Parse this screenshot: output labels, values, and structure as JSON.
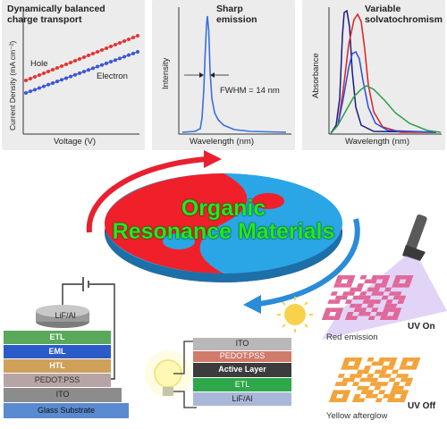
{
  "panels": {
    "charge_transport": {
      "title_line1": "Dynamically balanced",
      "title_line2": "charge transport",
      "xlabel": "Voltage (V)",
      "ylabel": "Current Density (mA cm⁻²)",
      "series_labels": {
        "hole": "Hole",
        "electron": "Electron"
      },
      "colors": {
        "hole": "#e63232",
        "electron": "#3a55d6"
      }
    },
    "emission": {
      "title_line1": "Sharp",
      "title_line2": "emission",
      "xlabel": "Wavelength (nm)",
      "ylabel": "Intensity",
      "annotation": "FWHM = 14 nm",
      "color": "#3a6fe0"
    },
    "solvatochromism": {
      "title_line1": "Variable",
      "title_line2": "solvatochromism",
      "xlabel": "Wavelength (nm)",
      "ylabel": "Absorbance",
      "colors": [
        "#1b1b80",
        "#e02020",
        "#2a4be0",
        "#2e9e4a"
      ]
    }
  },
  "center": {
    "line1": "Organic",
    "line2": "Resonance Materials",
    "colors": {
      "red": "#f0202a",
      "blue": "#2aa6e6",
      "arrow_red": "#e82030",
      "arrow_blue": "#2a8cd8"
    }
  },
  "oled_stack": {
    "layers": [
      "LiF/Al",
      "ETL",
      "EML",
      "HTL",
      "PEDOT:PSS",
      "ITO",
      "Glass Substrate"
    ]
  },
  "solar_stack": {
    "layers": [
      "ITO",
      "PEDOT:PSS",
      "Active Layer",
      "ETL",
      "LiF/Al"
    ]
  },
  "qr": {
    "uv_on": "UV On",
    "uv_off": "UV Off",
    "red_caption": "Red emission",
    "yellow_caption": "Yellow afterglow",
    "colors": {
      "red": "#e0689a",
      "yellow": "#f2a33a"
    }
  }
}
